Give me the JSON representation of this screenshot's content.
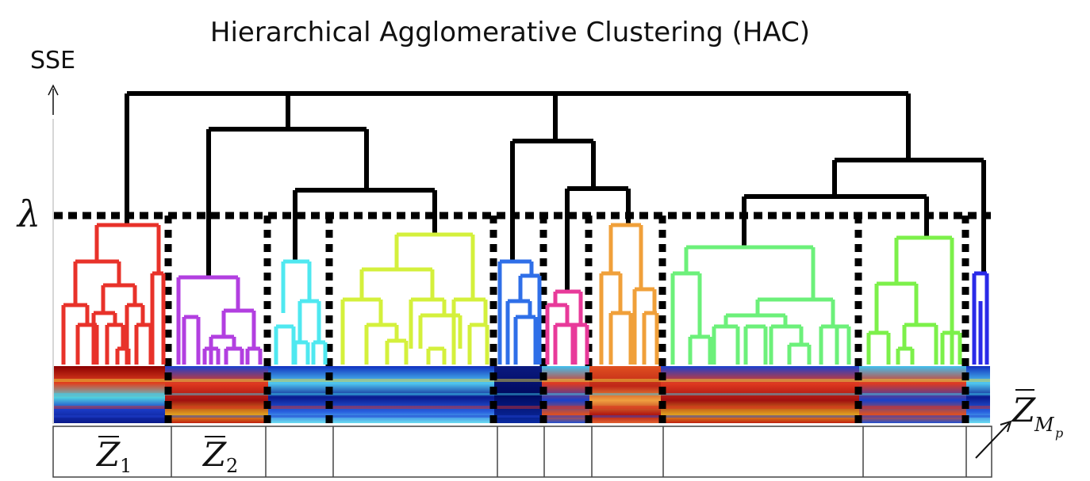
{
  "title": "Hierarchical Agglomerative Clustering (HAC)",
  "y_axis_label": "SSE",
  "threshold_label": "λ",
  "cluster_labels": [
    {
      "symbol": "Z",
      "subscript": "1"
    },
    {
      "symbol": "Z",
      "subscript": "2"
    },
    {
      "symbol": "Z",
      "subscript": "M",
      "subsubscript": "p"
    }
  ],
  "cluster_colors": [
    "#e8322a",
    "#b23fe0",
    "#4fe8f0",
    "#d4f03c",
    "#2f6fe8",
    "#e83a9a",
    "#f0a03a",
    "#6cf07a",
    "#7cf04a",
    "#2a2ae8"
  ],
  "tree_color": "#000000"
}
